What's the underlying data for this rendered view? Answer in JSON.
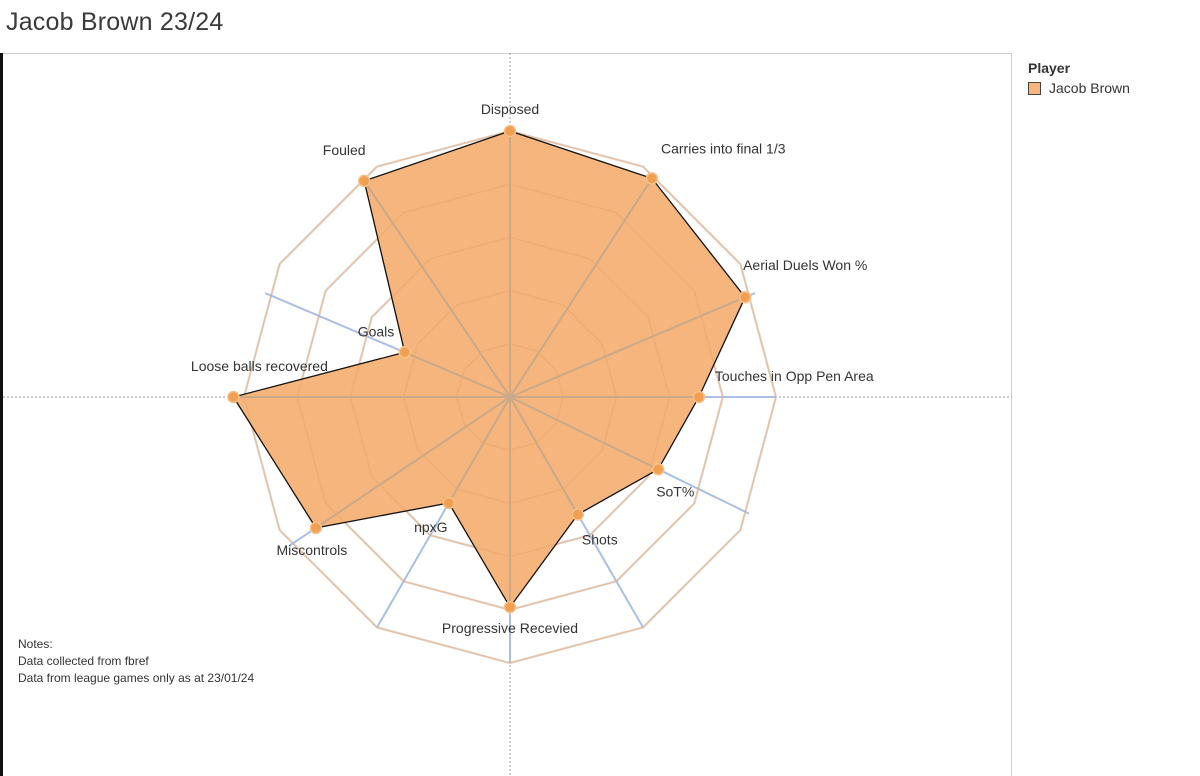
{
  "title": "Jacob Brown 23/24",
  "legend": {
    "title": "Player",
    "items": [
      {
        "label": "Jacob Brown",
        "color": "#f5b57c"
      }
    ]
  },
  "notes": {
    "heading": "Notes:",
    "lines": [
      "Data collected from fbref",
      "Data from league games only as at 23/01/24"
    ]
  },
  "colors": {
    "fill": "#f5b57c",
    "point": "#f0a050",
    "outline": "#111111",
    "grid": "#e4e4e8",
    "spoke_highlight": "#a9bfe6"
  },
  "chart_data": {
    "type": "radar",
    "title": "Jacob Brown 23/24",
    "rmax": 1.0,
    "rings": 5,
    "series": [
      {
        "name": "Jacob Brown",
        "categories": [
          "Disposed",
          "Carries into final 1/3",
          "Aerial Duels Won %",
          "Touches in Opp Pen Area",
          "SoT%",
          "Shots",
          "Progressive Recevied",
          "npxG",
          "Miscontrols",
          "Loose balls recovered",
          "Goals",
          "Fouled"
        ],
        "values": [
          1.0,
          0.98,
          0.96,
          0.71,
          0.62,
          0.51,
          0.79,
          0.46,
          0.88,
          1.04,
          0.43,
          0.98
        ]
      }
    ],
    "angles_deg": [
      0,
      33,
      67,
      90,
      116,
      150,
      180,
      210,
      236,
      270,
      293,
      326
    ]
  }
}
